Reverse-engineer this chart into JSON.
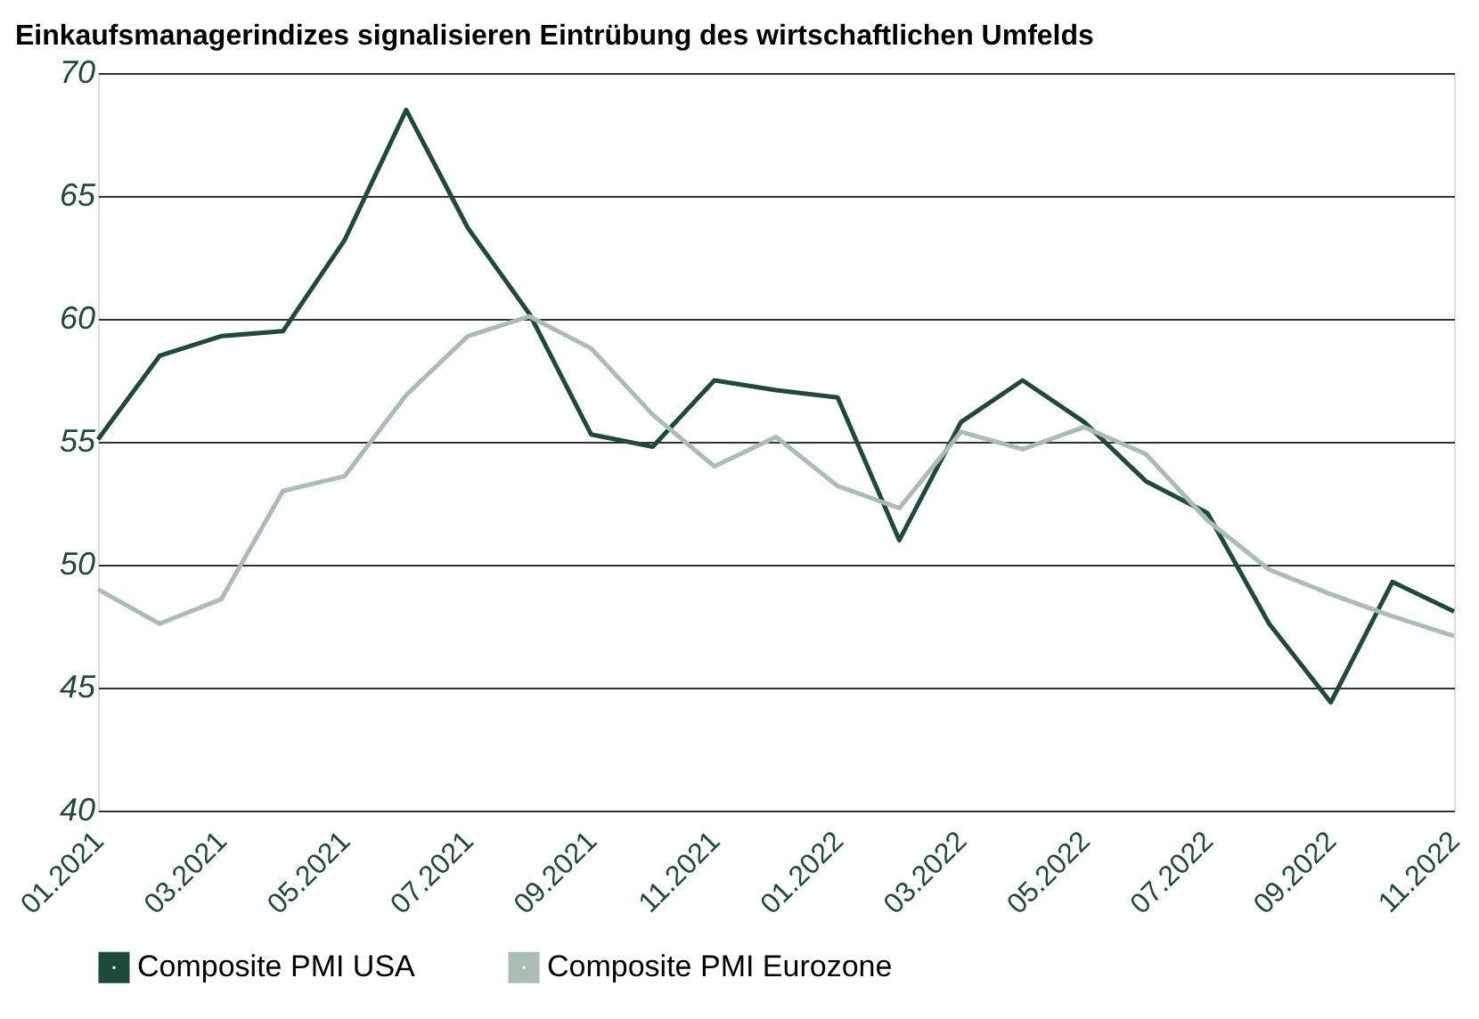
{
  "chart_data": {
    "type": "line",
    "title": "Einkaufsmanagerindizes signalisieren Eintrübung des wirtschaftlichen Umfelds",
    "categories": [
      "01.2021",
      null,
      "03.2021",
      null,
      "05.2021",
      null,
      "07.2021",
      null,
      "09.2021",
      null,
      "11.2021",
      null,
      "01.2022",
      null,
      "03.2022",
      null,
      "05.2022",
      null,
      "07.2022",
      null,
      "09.2022",
      null,
      "11.2022"
    ],
    "series": [
      {
        "name": "Composite PMI USA",
        "color": "#1e4a3e",
        "values": [
          55.1,
          58.5,
          59.3,
          59.5,
          63.2,
          68.5,
          63.7,
          60.2,
          55.3,
          54.8,
          57.5,
          57.1,
          56.8,
          51.0,
          55.8,
          57.5,
          55.8,
          53.4,
          52.1,
          47.6,
          44.4,
          49.3,
          48.1
        ]
      },
      {
        "name": "Composite PMI Eurozone",
        "color": "#a9bdb3",
        "values": [
          49.0,
          47.6,
          48.6,
          53.0,
          53.6,
          56.9,
          59.3,
          60.1,
          58.8,
          56.1,
          54.0,
          55.2,
          53.2,
          52.3,
          55.4,
          54.7,
          55.6,
          54.5,
          51.8,
          49.8,
          48.8,
          47.9,
          47.1
        ]
      }
    ],
    "ylim": [
      40,
      70
    ],
    "yticks": [
      40,
      45,
      50,
      55,
      60,
      65,
      70
    ],
    "grid": "y",
    "legend": "bottom",
    "marker": "none",
    "line_style": "solid"
  }
}
